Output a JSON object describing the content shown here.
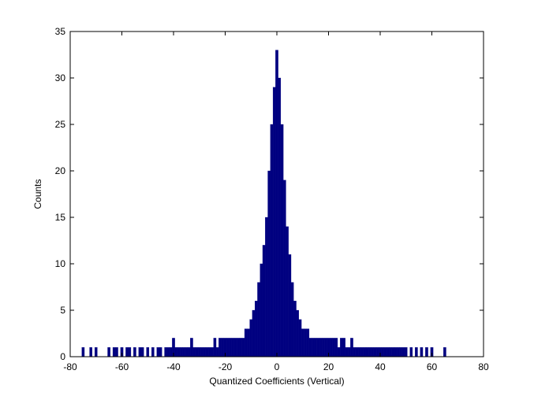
{
  "chart_data": {
    "type": "bar",
    "xlabel": "Quantized Coefficients (Vertical)",
    "ylabel": "Counts",
    "xlim": [
      -80,
      80
    ],
    "ylim": [
      0,
      35
    ],
    "xticks": [
      -80,
      -60,
      -40,
      -20,
      0,
      20,
      40,
      60,
      80
    ],
    "yticks": [
      0,
      5,
      10,
      15,
      20,
      25,
      30,
      35
    ],
    "grid": false,
    "bar_color": "#000080",
    "series": [
      {
        "x": [
          -75,
          -72,
          -70,
          -65,
          -63,
          -62,
          -60,
          -58,
          -57,
          -55,
          -53,
          -52,
          -50,
          -48,
          -46,
          -45,
          -43,
          -42,
          -41,
          -40,
          -39,
          -38,
          -37,
          -36,
          -35,
          -34,
          -33,
          -32,
          -31,
          -30,
          -29,
          -28,
          -27,
          -26,
          -25,
          -24,
          -23,
          -22,
          -21,
          -20,
          -19,
          -18,
          -17,
          -16,
          -15,
          -14,
          -13,
          -12,
          -11,
          -10,
          -9,
          -8,
          -7,
          -6,
          -5,
          -4,
          -3,
          -2,
          -1,
          0,
          1,
          2,
          3,
          4,
          5,
          6,
          7,
          8,
          9,
          10,
          11,
          12,
          13,
          14,
          15,
          16,
          17,
          18,
          19,
          20,
          21,
          22,
          23,
          24,
          25,
          26,
          27,
          28,
          29,
          30,
          31,
          32,
          33,
          34,
          35,
          36,
          37,
          38,
          39,
          40,
          41,
          42,
          43,
          44,
          45,
          46,
          47,
          48,
          49,
          50,
          52,
          54,
          56,
          58,
          60,
          65
        ],
        "values": [
          1,
          1,
          1,
          1,
          1,
          1,
          1,
          1,
          1,
          1,
          1,
          1,
          1,
          1,
          1,
          1,
          1,
          1,
          1,
          2,
          1,
          1,
          1,
          1,
          1,
          1,
          2,
          1,
          1,
          1,
          1,
          1,
          1,
          1,
          1,
          2,
          1,
          2,
          2,
          2,
          2,
          2,
          2,
          2,
          2,
          2,
          2,
          3,
          3,
          4,
          5,
          6,
          8,
          10,
          12,
          15,
          20,
          25,
          29,
          33,
          30,
          25,
          19,
          14,
          11,
          8,
          6,
          5,
          4,
          3,
          3,
          3,
          2,
          2,
          2,
          2,
          2,
          2,
          2,
          2,
          2,
          2,
          2,
          1,
          2,
          2,
          1,
          1,
          2,
          1,
          1,
          1,
          1,
          1,
          1,
          1,
          1,
          1,
          1,
          1,
          1,
          1,
          1,
          1,
          1,
          1,
          1,
          1,
          1,
          1,
          1,
          1,
          1,
          1,
          1,
          1
        ]
      }
    ]
  }
}
